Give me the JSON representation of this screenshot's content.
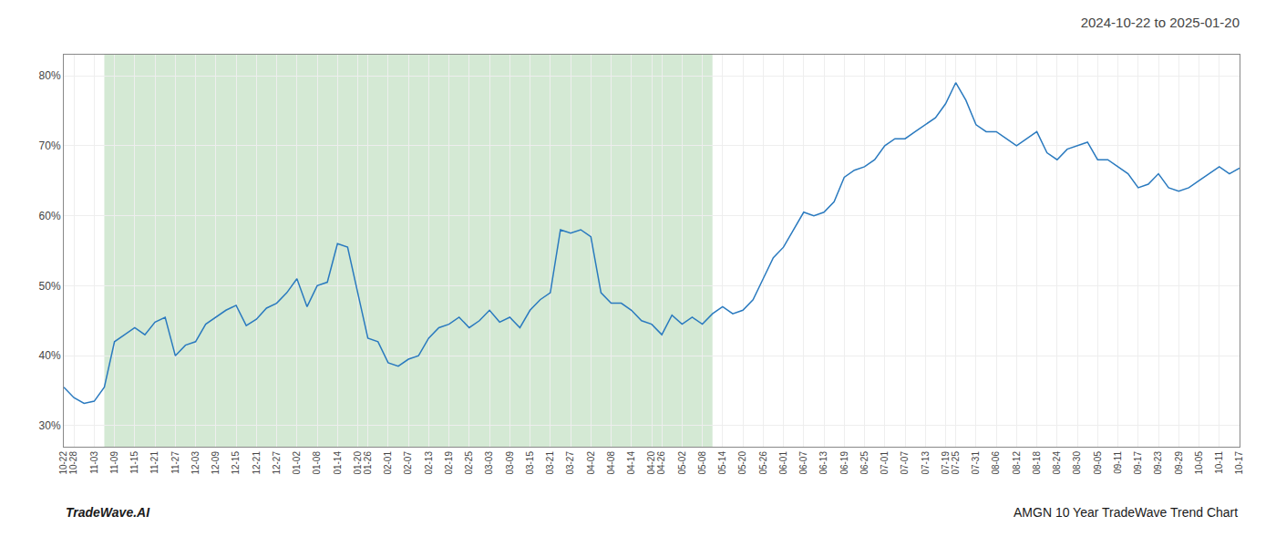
{
  "chart_data": {
    "type": "line",
    "title": "2024-10-22 to 2025-01-20",
    "annotations": [
      "TradeWave.AI",
      "AMGN 10 Year TradeWave Trend Chart"
    ],
    "categories": [
      "10-22",
      "10-28",
      null,
      "11-03",
      null,
      "11-09",
      null,
      "11-15",
      null,
      "11-21",
      null,
      "11-27",
      null,
      "12-03",
      null,
      "12-09",
      null,
      "12-15",
      null,
      "12-21",
      null,
      "12-27",
      null,
      "01-02",
      null,
      "01-08",
      null,
      "01-14",
      null,
      "01-20",
      "01-26",
      null,
      "02-01",
      null,
      "02-07",
      null,
      "02-13",
      null,
      "02-19",
      null,
      "02-25",
      null,
      "03-03",
      null,
      "03-09",
      null,
      "03-15",
      null,
      "03-21",
      null,
      "03-27",
      null,
      "04-02",
      null,
      "04-08",
      null,
      "04-14",
      null,
      "04-20",
      "04-26",
      null,
      "05-02",
      null,
      "05-08",
      null,
      "05-14",
      null,
      "05-20",
      null,
      "05-26",
      null,
      "06-01",
      null,
      "06-07",
      null,
      "06-13",
      null,
      "06-19",
      null,
      "06-25",
      null,
      "07-01",
      null,
      "07-07",
      null,
      "07-13",
      null,
      "07-19",
      "07-25",
      null,
      "07-31",
      null,
      "08-06",
      null,
      "08-12",
      null,
      "08-18",
      null,
      "08-24",
      null,
      "08-30",
      null,
      "09-05",
      null,
      "09-11",
      null,
      "09-17",
      null,
      "09-23",
      null,
      "09-29",
      null,
      "10-05",
      null,
      "10-11",
      null,
      "10-17"
    ],
    "values": [
      0.355,
      0.34,
      0.332,
      0.335,
      0.355,
      0.42,
      0.43,
      0.44,
      0.43,
      0.448,
      0.455,
      0.4,
      0.415,
      0.42,
      0.445,
      0.455,
      0.465,
      0.472,
      0.443,
      0.452,
      0.468,
      0.475,
      0.49,
      0.51,
      0.47,
      0.5,
      0.505,
      0.56,
      0.555,
      0.49,
      0.425,
      0.42,
      0.39,
      0.385,
      0.395,
      0.4,
      0.425,
      0.44,
      0.445,
      0.455,
      0.44,
      0.45,
      0.465,
      0.448,
      0.455,
      0.44,
      0.465,
      0.48,
      0.49,
      0.58,
      0.575,
      0.58,
      0.57,
      0.49,
      0.475,
      0.475,
      0.465,
      0.45,
      0.445,
      0.43,
      0.458,
      0.445,
      0.455,
      0.445,
      0.46,
      0.47,
      0.46,
      0.465,
      0.48,
      0.51,
      0.54,
      0.555,
      0.58,
      0.605,
      0.6,
      0.605,
      0.62,
      0.655,
      0.665,
      0.67,
      0.68,
      0.7,
      0.71,
      0.71,
      0.72,
      0.73,
      0.74,
      0.76,
      0.79,
      0.765,
      0.73,
      0.72,
      0.72,
      0.71,
      0.7,
      0.71,
      0.72,
      0.69,
      0.68,
      0.695,
      0.7,
      0.705,
      0.68,
      0.68,
      0.67,
      0.66,
      0.64,
      0.645,
      0.66,
      0.64,
      0.635,
      0.64,
      0.65,
      0.66,
      0.67,
      0.66,
      0.668
    ],
    "color": "#2a7abf",
    "ylim": [
      0.27,
      0.83
    ],
    "yticks": [
      {
        "value": 0.3,
        "label": "30%"
      },
      {
        "value": 0.4,
        "label": "40%"
      },
      {
        "value": 0.5,
        "label": "50%"
      },
      {
        "value": 0.6,
        "label": "60%"
      },
      {
        "value": 0.7,
        "label": "70%"
      },
      {
        "value": 0.8,
        "label": "80%"
      }
    ],
    "grid": true,
    "highlight": {
      "start": 4,
      "end": 64,
      "color": "#d4e9d4"
    }
  }
}
